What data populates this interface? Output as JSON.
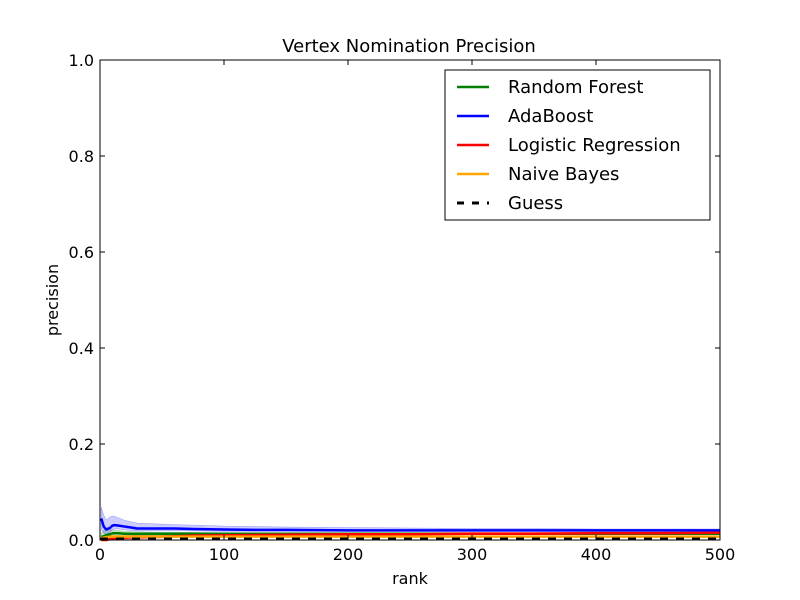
{
  "chart_data": {
    "type": "line",
    "title": "Vertex Nomination Precision",
    "xlabel": "rank",
    "ylabel": "precision",
    "xlim": [
      0,
      500
    ],
    "ylim": [
      0.0,
      1.0
    ],
    "xticks": [
      0,
      100,
      200,
      300,
      400,
      500
    ],
    "xtick_labels": [
      "0",
      "100",
      "200",
      "300",
      "400",
      "500"
    ],
    "yticks": [
      0.0,
      0.2,
      0.4,
      0.6,
      0.8,
      1.0
    ],
    "ytick_labels": [
      "0.0",
      "0.2",
      "0.4",
      "0.6",
      "0.8",
      "1.0"
    ],
    "grid": false,
    "legend_position": "top-right",
    "series": [
      {
        "name": "Random Forest",
        "color": "#008000",
        "style": "solid",
        "x": [
          1,
          3,
          5,
          8,
          10,
          15,
          20,
          30,
          50,
          75,
          100,
          150,
          200,
          300,
          400,
          500
        ],
        "y": [
          0.006,
          0.008,
          0.01,
          0.012,
          0.014,
          0.014,
          0.013,
          0.013,
          0.013,
          0.013,
          0.013,
          0.013,
          0.013,
          0.013,
          0.013,
          0.013
        ],
        "band": {
          "color": "#008000",
          "lower": [
            0.0,
            0.0,
            0.002,
            0.005,
            0.008,
            0.009,
            0.009,
            0.01,
            0.01,
            0.011,
            0.011,
            0.011,
            0.011,
            0.011,
            0.011,
            0.011
          ],
          "upper": [
            0.015,
            0.02,
            0.02,
            0.021,
            0.021,
            0.02,
            0.018,
            0.017,
            0.016,
            0.016,
            0.015,
            0.015,
            0.015,
            0.015,
            0.015,
            0.015
          ]
        }
      },
      {
        "name": "AdaBoost",
        "color": "#0000ff",
        "style": "solid",
        "x": [
          1,
          3,
          5,
          8,
          10,
          12,
          15,
          20,
          25,
          30,
          40,
          50,
          60,
          75,
          100,
          125,
          150,
          200,
          250,
          300,
          350,
          400,
          450,
          500
        ],
        "y": [
          0.045,
          0.028,
          0.022,
          0.025,
          0.03,
          0.031,
          0.03,
          0.028,
          0.026,
          0.024,
          0.024,
          0.024,
          0.024,
          0.023,
          0.022,
          0.021,
          0.021,
          0.02,
          0.02,
          0.02,
          0.02,
          0.02,
          0.02,
          0.02
        ],
        "band": {
          "color": "#0000ff",
          "lower": [
            0.022,
            0.014,
            0.012,
            0.016,
            0.021,
            0.023,
            0.023,
            0.021,
            0.02,
            0.019,
            0.019,
            0.019,
            0.019,
            0.019,
            0.018,
            0.018,
            0.018,
            0.018,
            0.018,
            0.018,
            0.018,
            0.018,
            0.018,
            0.018
          ],
          "upper": [
            0.068,
            0.052,
            0.042,
            0.048,
            0.05,
            0.049,
            0.046,
            0.041,
            0.038,
            0.035,
            0.034,
            0.033,
            0.032,
            0.031,
            0.029,
            0.028,
            0.027,
            0.026,
            0.025,
            0.024,
            0.024,
            0.023,
            0.023,
            0.023
          ]
        }
      },
      {
        "name": "Logistic Regression",
        "color": "#ff0000",
        "style": "solid",
        "x": [
          1,
          5,
          10,
          15,
          20,
          30,
          50,
          75,
          100,
          150,
          200,
          250,
          300,
          350,
          400,
          450,
          500
        ],
        "y": [
          0.0,
          0.0,
          0.003,
          0.004,
          0.005,
          0.006,
          0.007,
          0.009,
          0.01,
          0.011,
          0.012,
          0.012,
          0.013,
          0.013,
          0.014,
          0.014,
          0.015
        ],
        "band": {
          "color": "#ff0000",
          "lower": [
            0.0,
            0.0,
            0.0,
            0.0,
            0.001,
            0.002,
            0.004,
            0.006,
            0.007,
            0.009,
            0.01,
            0.01,
            0.011,
            0.011,
            0.012,
            0.012,
            0.013
          ],
          "upper": [
            0.002,
            0.004,
            0.007,
            0.008,
            0.009,
            0.01,
            0.011,
            0.012,
            0.013,
            0.014,
            0.015,
            0.015,
            0.016,
            0.016,
            0.017,
            0.017,
            0.018
          ]
        }
      },
      {
        "name": "Naive Bayes",
        "color": "#ffa500",
        "style": "solid",
        "x": [
          1,
          5,
          10,
          20,
          50,
          100,
          200,
          300,
          400,
          500
        ],
        "y": [
          0.004,
          0.006,
          0.007,
          0.007,
          0.007,
          0.007,
          0.007,
          0.007,
          0.007,
          0.007
        ],
        "band": {
          "color": "#ffa500",
          "lower": [
            0.0,
            0.002,
            0.004,
            0.005,
            0.006,
            0.006,
            0.006,
            0.006,
            0.006,
            0.006
          ],
          "upper": [
            0.01,
            0.01,
            0.01,
            0.009,
            0.009,
            0.008,
            0.008,
            0.008,
            0.008,
            0.008
          ]
        }
      },
      {
        "name": "Guess",
        "color": "#000000",
        "style": "dashed",
        "x": [
          0,
          500
        ],
        "y": [
          0.002,
          0.002
        ]
      }
    ]
  }
}
